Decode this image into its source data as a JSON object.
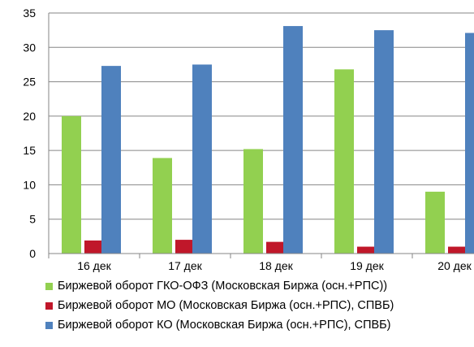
{
  "chart_data": {
    "type": "bar",
    "categories": [
      "16 дек",
      "17 дек",
      "18 дек",
      "19 дек",
      "20 дек"
    ],
    "ylim": [
      0,
      35
    ],
    "yticks": [
      0,
      5,
      10,
      15,
      20,
      25,
      30,
      35
    ],
    "grid": true,
    "legend_position": "bottom",
    "series": [
      {
        "name": "Биржевой оборот ГКО-ОФЗ (Московская Биржа (осн.+РПС))",
        "color": "#92d050",
        "values": [
          20.0,
          13.9,
          15.2,
          26.8,
          9.0
        ]
      },
      {
        "name": "Биржевой оборот МО (Московская Биржа (осн.+РПС), СПВБ)",
        "color": "#c0172a",
        "values": [
          1.9,
          2.0,
          1.7,
          1.0,
          1.0
        ]
      },
      {
        "name": "Биржевой оборот КО (Московская Биржа (осн.+РПС), СПВБ)",
        "color": "#4f81bd",
        "values": [
          27.3,
          27.5,
          33.1,
          32.5,
          32.1
        ]
      }
    ]
  }
}
